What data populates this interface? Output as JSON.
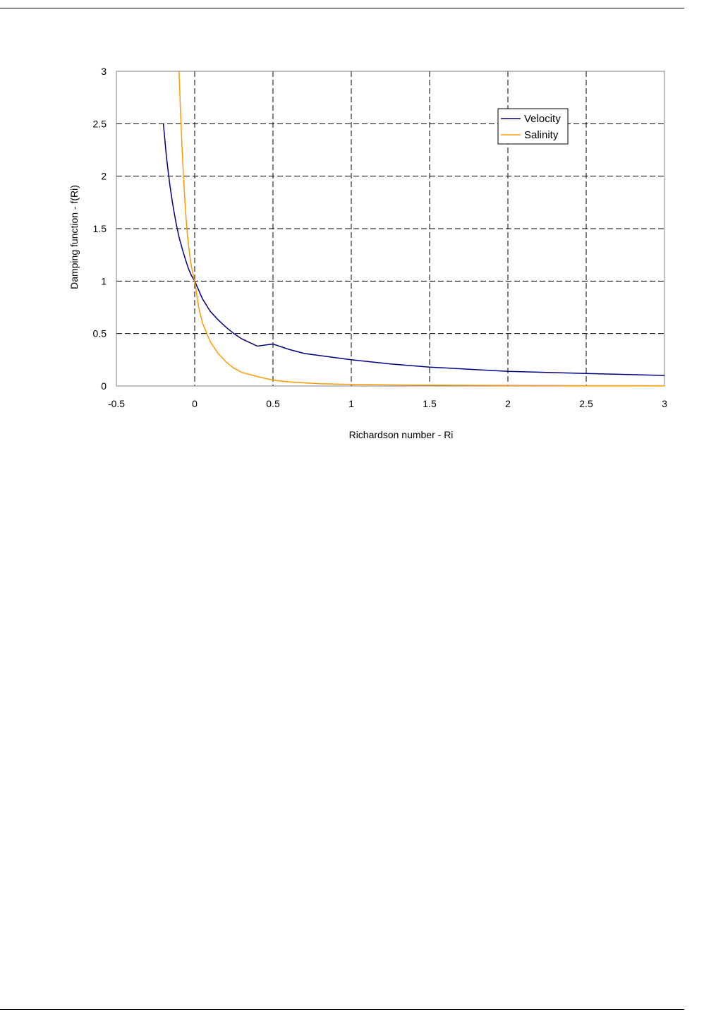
{
  "chart_data": {
    "type": "line",
    "title": "",
    "xlabel": "Richardson number - Ri",
    "ylabel": "Damping function - f(Ri)",
    "xlim": [
      -0.5,
      3
    ],
    "ylim": [
      0,
      3
    ],
    "xticks": [
      -0.5,
      0,
      0.5,
      1,
      1.5,
      2,
      2.5,
      3
    ],
    "yticks": [
      0,
      0.5,
      1,
      1.5,
      2,
      2.5,
      3
    ],
    "xtick_labels": [
      "-0.5",
      "0",
      "0.5",
      "1",
      "1.5",
      "2",
      "2.5",
      "3"
    ],
    "ytick_labels": [
      "0",
      "0.5",
      "1",
      "1.5",
      "2",
      "2.5",
      "3"
    ],
    "grid": "dashed",
    "legend_position": "top-right",
    "series": [
      {
        "name": "Velocity",
        "color": "#000080",
        "x": [
          -0.2,
          -0.18,
          -0.16,
          -0.14,
          -0.12,
          -0.1,
          -0.08,
          -0.06,
          -0.04,
          -0.02,
          0,
          0.05,
          0.1,
          0.15,
          0.2,
          0.25,
          0.3,
          0.4,
          0.5,
          0.6,
          0.7,
          0.8,
          0.9,
          1,
          1.25,
          1.5,
          1.75,
          2,
          2.25,
          2.5,
          2.75,
          3
        ],
        "y": [
          2.5,
          2.18,
          1.93,
          1.73,
          1.56,
          1.42,
          1.31,
          1.21,
          1.12,
          1.05,
          1.0,
          0.83,
          0.71,
          0.63,
          0.56,
          0.5,
          0.45,
          0.38,
          0.4,
          0.35,
          0.31,
          0.29,
          0.27,
          0.25,
          0.21,
          0.18,
          0.16,
          0.14,
          0.13,
          0.12,
          0.11,
          0.1
        ]
      },
      {
        "name": "Salinity",
        "color": "#FF9900",
        "x": [
          -0.1,
          -0.09,
          -0.08,
          -0.07,
          -0.06,
          -0.05,
          -0.04,
          -0.03,
          -0.02,
          -0.01,
          0,
          0.025,
          0.05,
          0.1,
          0.15,
          0.2,
          0.25,
          0.3,
          0.4,
          0.5,
          0.6,
          0.7,
          0.8,
          1,
          1.25,
          1.5,
          2,
          2.5,
          3
        ],
        "y": [
          3.0,
          2.6,
          2.25,
          1.95,
          1.7,
          1.5,
          1.35,
          1.23,
          1.13,
          1.06,
          1.0,
          0.75,
          0.6,
          0.42,
          0.31,
          0.23,
          0.17,
          0.13,
          0.09,
          0.055,
          0.04,
          0.03,
          0.022,
          0.015,
          0.01,
          0.008,
          0.005,
          0.003,
          0.002
        ]
      }
    ]
  }
}
